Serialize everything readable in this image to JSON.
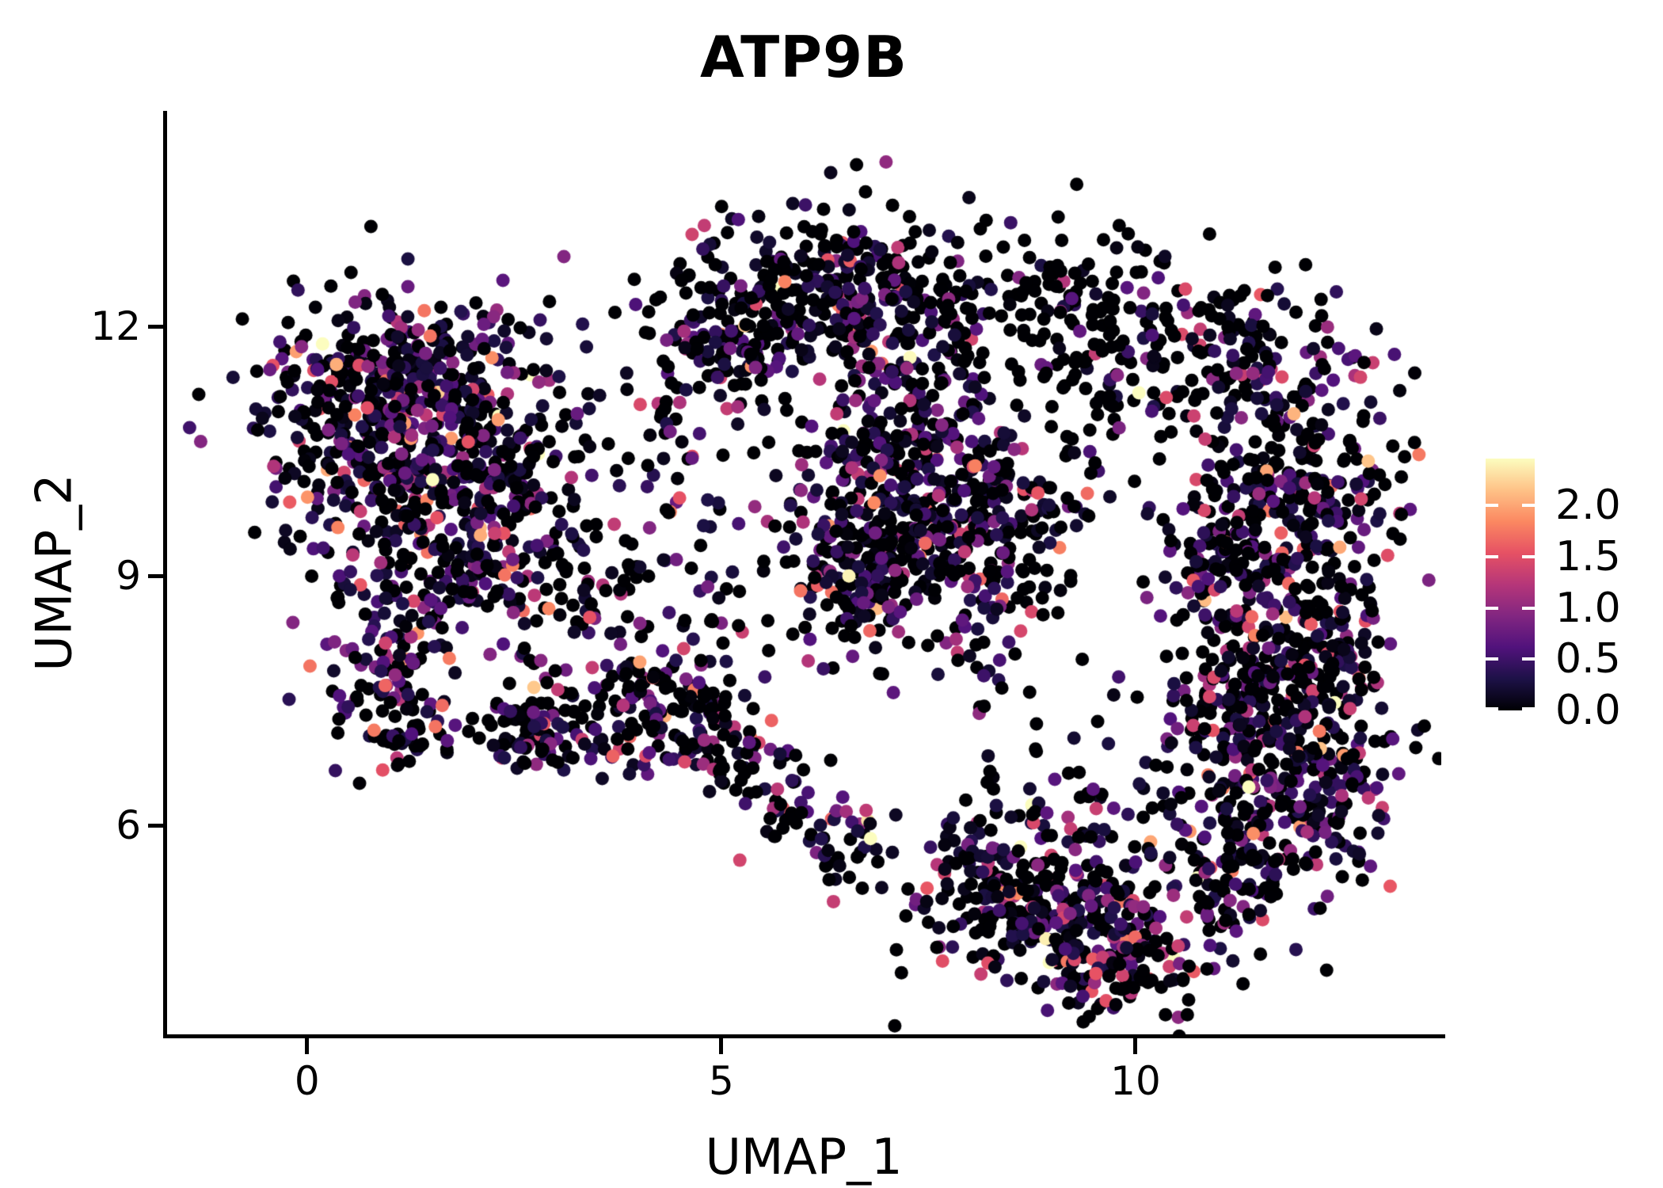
{
  "chart_data": {
    "type": "scatter",
    "title": "ATP9B",
    "xlabel": "UMAP_1",
    "ylabel": "UMAP_2",
    "xlim": [
      -1.7,
      13.69
    ],
    "ylim": [
      3.49,
      14.59
    ],
    "grid": false,
    "background": "#ffffff",
    "axis_color": "#000000",
    "text_color": "#000000",
    "x_ticks": [
      {
        "label": "0",
        "value": 0
      },
      {
        "label": "5",
        "value": 5
      },
      {
        "label": "10",
        "value": 10
      }
    ],
    "y_ticks": [
      {
        "label": "6",
        "value": 6
      },
      {
        "label": "9",
        "value": 9
      },
      {
        "label": "12",
        "value": 12
      }
    ],
    "legend": {
      "position": "right",
      "vmin": 0.0,
      "vmax": 2.46,
      "colormap": "magma",
      "stops": [
        "#000004",
        "#1D1147",
        "#51127C",
        "#822681",
        "#B63679",
        "#E65164",
        "#FB8861",
        "#FEC287",
        "#FCFDBF"
      ],
      "ticks": [
        {
          "label": "2.0",
          "value": 2.0
        },
        {
          "label": "1.5",
          "value": 1.5
        },
        {
          "label": "1.0",
          "value": 1.0
        },
        {
          "label": "0.5",
          "value": 0.5
        },
        {
          "label": "0.0",
          "value": 0.0
        }
      ]
    },
    "point_radius_px": 8.5,
    "n_points_approx": 4480,
    "seed": 20240918,
    "clusters": [
      {
        "cx": 0.59,
        "cy": 11.35,
        "sx": 0.55,
        "sy": 0.5,
        "n": 150,
        "zero_frac": 0.34,
        "expr_scale": 0.62
      },
      {
        "cx": 1.64,
        "cy": 11.45,
        "sx": 0.5,
        "sy": 0.45,
        "n": 140,
        "zero_frac": 0.34,
        "expr_scale": 0.62
      },
      {
        "cx": 0.88,
        "cy": 10.5,
        "sx": 0.7,
        "sy": 0.55,
        "n": 190,
        "zero_frac": 0.33,
        "expr_scale": 0.65
      },
      {
        "cx": 2.03,
        "cy": 10.3,
        "sx": 0.6,
        "sy": 0.55,
        "n": 150,
        "zero_frac": 0.36,
        "expr_scale": 0.6
      },
      {
        "cx": 1.26,
        "cy": 9.35,
        "sx": 0.8,
        "sy": 0.5,
        "n": 140,
        "zero_frac": 0.36,
        "expr_scale": 0.62
      },
      {
        "cx": 2.5,
        "cy": 9.26,
        "sx": 0.5,
        "sy": 0.5,
        "n": 70,
        "zero_frac": 0.45,
        "expr_scale": 0.55
      },
      {
        "cx": 0.98,
        "cy": 7.92,
        "sx": 0.42,
        "sy": 0.5,
        "n": 95,
        "zero_frac": 0.34,
        "expr_scale": 0.65
      },
      {
        "cx": 1.26,
        "cy": 7.07,
        "sx": 0.3,
        "sy": 0.25,
        "n": 40,
        "zero_frac": 0.38,
        "expr_scale": 0.6
      },
      {
        "cx": 3.56,
        "cy": 11.0,
        "sx": 0.75,
        "sy": 0.75,
        "n": 70,
        "zero_frac": 0.5,
        "expr_scale": 0.5
      },
      {
        "cx": 4.03,
        "cy": 8.88,
        "sx": 0.9,
        "sy": 0.8,
        "n": 110,
        "zero_frac": 0.48,
        "expr_scale": 0.55
      },
      {
        "cx": 2.75,
        "cy": 7.25,
        "sx": 0.35,
        "sy": 0.35,
        "n": 100,
        "zero_frac": 0.4,
        "expr_scale": 0.6
      },
      {
        "cx": 4.25,
        "cy": 7.35,
        "sx": 0.45,
        "sy": 0.45,
        "n": 130,
        "zero_frac": 0.38,
        "expr_scale": 0.65
      },
      {
        "cx": 6.23,
        "cy": 12.5,
        "sx": 0.75,
        "sy": 0.5,
        "n": 250,
        "zero_frac": 0.5,
        "expr_scale": 0.5
      },
      {
        "cx": 5.09,
        "cy": 11.8,
        "sx": 0.55,
        "sy": 0.5,
        "n": 130,
        "zero_frac": 0.48,
        "expr_scale": 0.52
      },
      {
        "cx": 7.38,
        "cy": 11.7,
        "sx": 0.5,
        "sy": 0.5,
        "n": 120,
        "zero_frac": 0.5,
        "expr_scale": 0.5
      },
      {
        "cx": 7.09,
        "cy": 10.2,
        "sx": 0.7,
        "sy": 0.55,
        "n": 250,
        "zero_frac": 0.42,
        "expr_scale": 0.58
      },
      {
        "cx": 8.05,
        "cy": 9.45,
        "sx": 0.6,
        "sy": 0.6,
        "n": 220,
        "zero_frac": 0.42,
        "expr_scale": 0.58
      },
      {
        "cx": 6.61,
        "cy": 8.88,
        "sx": 0.55,
        "sy": 0.5,
        "n": 150,
        "zero_frac": 0.42,
        "expr_scale": 0.58
      },
      {
        "cx": 9.15,
        "cy": 12.2,
        "sx": 0.7,
        "sy": 0.55,
        "n": 150,
        "zero_frac": 0.74,
        "expr_scale": 0.4
      },
      {
        "cx": 9.0,
        "cy": 10.6,
        "sx": 0.8,
        "sy": 0.8,
        "n": 45,
        "zero_frac": 0.72,
        "expr_scale": 0.4
      },
      {
        "cx": 11.2,
        "cy": 11.6,
        "sx": 0.8,
        "sy": 0.5,
        "n": 170,
        "zero_frac": 0.5,
        "expr_scale": 0.55
      },
      {
        "cx": 12.0,
        "cy": 10.2,
        "sx": 0.65,
        "sy": 0.6,
        "n": 170,
        "zero_frac": 0.4,
        "expr_scale": 0.62
      },
      {
        "cx": 11.2,
        "cy": 9.26,
        "sx": 0.55,
        "sy": 0.6,
        "n": 150,
        "zero_frac": 0.42,
        "expr_scale": 0.6
      },
      {
        "cx": 12.06,
        "cy": 8.02,
        "sx": 0.55,
        "sy": 0.7,
        "n": 180,
        "zero_frac": 0.4,
        "expr_scale": 0.62
      },
      {
        "cx": 11.3,
        "cy": 7.35,
        "sx": 0.55,
        "sy": 0.6,
        "n": 150,
        "zero_frac": 0.4,
        "expr_scale": 0.62
      },
      {
        "cx": 12.06,
        "cy": 6.2,
        "sx": 0.6,
        "sy": 0.65,
        "n": 170,
        "zero_frac": 0.38,
        "expr_scale": 0.65
      },
      {
        "cx": 11.0,
        "cy": 5.64,
        "sx": 0.5,
        "sy": 0.5,
        "n": 120,
        "zero_frac": 0.38,
        "expr_scale": 0.65
      },
      {
        "cx": 12.45,
        "cy": 8.3,
        "sx": 0.25,
        "sy": 0.9,
        "n": 70,
        "zero_frac": 0.42,
        "expr_scale": 0.6
      },
      {
        "cx": 5.2,
        "cy": 6.9,
        "sx": 0.3,
        "sy": 0.3,
        "n": 45,
        "zero_frac": 0.42,
        "expr_scale": 0.7
      },
      {
        "cx": 5.85,
        "cy": 6.35,
        "sx": 0.3,
        "sy": 0.3,
        "n": 40,
        "zero_frac": 0.42,
        "expr_scale": 0.7
      },
      {
        "cx": 6.5,
        "cy": 5.75,
        "sx": 0.28,
        "sy": 0.28,
        "n": 35,
        "zero_frac": 0.42,
        "expr_scale": 0.7
      },
      {
        "cx": 8.34,
        "cy": 5.26,
        "sx": 0.55,
        "sy": 0.5,
        "n": 170,
        "zero_frac": 0.4,
        "expr_scale": 0.68
      },
      {
        "cx": 9.48,
        "cy": 4.88,
        "sx": 0.6,
        "sy": 0.45,
        "n": 170,
        "zero_frac": 0.4,
        "expr_scale": 0.68
      },
      {
        "cx": 9.87,
        "cy": 4.3,
        "sx": 0.5,
        "sy": 0.3,
        "n": 90,
        "zero_frac": 0.4,
        "expr_scale": 0.65
      },
      {
        "cx": 8.2,
        "cy": 7.3,
        "sx": 0.5,
        "sy": 0.6,
        "n": 20,
        "zero_frac": 0.55,
        "expr_scale": 0.5
      },
      {
        "cx": 9.3,
        "cy": 6.3,
        "sx": 0.45,
        "sy": 0.45,
        "n": 30,
        "zero_frac": 0.45,
        "expr_scale": 0.6
      }
    ]
  }
}
